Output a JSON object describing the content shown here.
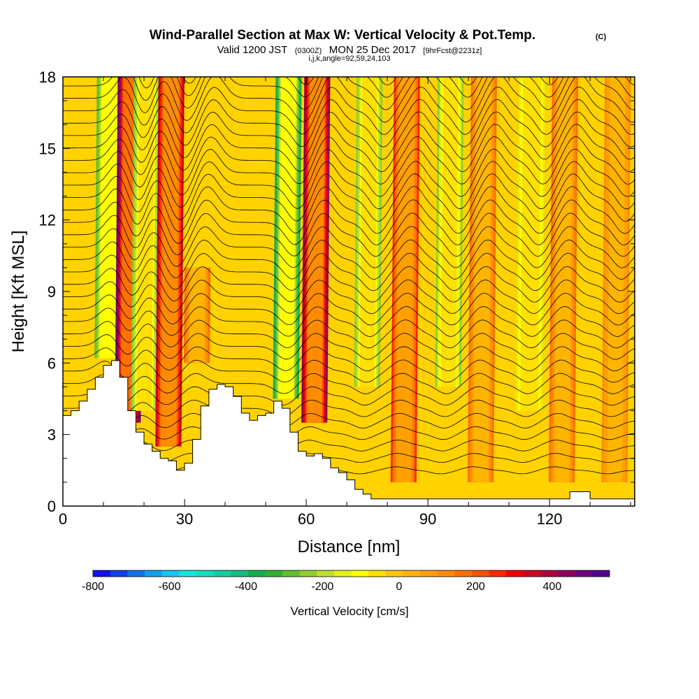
{
  "chart_data": {
    "type": "heatmap",
    "title": "Wind-Parallel Section at Max W: Vertical Velocity & Pot.Temp.",
    "title_mark": "(C)",
    "subtitle_main": "Valid 1200 JST",
    "subtitle_z": "(0300Z)",
    "subtitle_date": "MON 25 Dec 2017",
    "subtitle_fcst": "[9hrFcst@2231z]",
    "subtitle_indices": "i,j,k,angle=92,59,24,103",
    "xlabel": "Distance [nm]",
    "ylabel": "Height [Kft MSL]",
    "xlim": [
      0,
      141
    ],
    "ylim": [
      0,
      18
    ],
    "xticks": [
      0,
      30,
      60,
      90,
      120
    ],
    "yticks": [
      0,
      3,
      6,
      9,
      12,
      15,
      18
    ],
    "colorbar": {
      "label": "Vertical Velocity [cm/s]",
      "ticks": [
        -800,
        -600,
        -400,
        -200,
        0,
        200,
        400
      ],
      "range": [
        -800,
        550
      ],
      "colors": [
        "#1010f0",
        "#1040f0",
        "#1070f0",
        "#10a0f0",
        "#10c8f0",
        "#10e8e0",
        "#10e0c0",
        "#10d0a0",
        "#10c080",
        "#10b050",
        "#30b030",
        "#60c030",
        "#90d030",
        "#c0e030",
        "#e8f010",
        "#ffff00",
        "#ffe000",
        "#ffc800",
        "#ffb400",
        "#ffa000",
        "#ff8c00",
        "#ff7000",
        "#ff5000",
        "#ff2800",
        "#f00000",
        "#d00020",
        "#b00040",
        "#900060",
        "#700080",
        "#500090"
      ]
    },
    "legend": "bottom colorbar",
    "grid": false,
    "terrain_profile": {
      "x": [
        0,
        2,
        4,
        6,
        8,
        10,
        12,
        14,
        16,
        18,
        20,
        22,
        24,
        26,
        28,
        30,
        32,
        34,
        36,
        38,
        40,
        42,
        44,
        46,
        48,
        50,
        52,
        54,
        56,
        58,
        60,
        62,
        64,
        66,
        68,
        70,
        72,
        74,
        76,
        80,
        90,
        100,
        110,
        120,
        125,
        128,
        130,
        141
      ],
      "height": [
        3.8,
        4.0,
        4.4,
        4.9,
        5.4,
        5.9,
        6.1,
        5.4,
        4.0,
        3.1,
        2.6,
        2.3,
        2.0,
        1.9,
        1.5,
        1.8,
        2.8,
        4.2,
        4.9,
        5.1,
        5.0,
        4.6,
        3.9,
        3.6,
        3.8,
        3.9,
        4.4,
        4.1,
        3.1,
        2.3,
        2.1,
        2.2,
        2.0,
        1.6,
        1.4,
        1.1,
        0.7,
        0.5,
        0.3,
        0.3,
        0.3,
        0.3,
        0.3,
        0.3,
        0.6,
        0.6,
        0.3,
        0.3
      ]
    },
    "vertical_velocity_bands": [
      {
        "x": 11,
        "top": 18,
        "bottom": 6.2,
        "w": -300
      },
      {
        "x": 16,
        "top": 18,
        "bottom": 3.5,
        "w": 500
      },
      {
        "x": 20,
        "top": 18,
        "bottom": 4.0,
        "w": -250
      },
      {
        "x": 26,
        "top": 18,
        "bottom": 2.5,
        "w": 350
      },
      {
        "x": 33,
        "top": 10,
        "bottom": 6,
        "w": 150
      },
      {
        "x": 55,
        "top": 18,
        "bottom": 4.5,
        "w": -380
      },
      {
        "x": 62,
        "top": 18,
        "bottom": 3.5,
        "w": 420
      },
      {
        "x": 75,
        "top": 18,
        "bottom": 5,
        "w": -250
      },
      {
        "x": 84,
        "top": 18,
        "bottom": 1,
        "w": 250
      },
      {
        "x": 95,
        "top": 18,
        "bottom": 5,
        "w": -220
      },
      {
        "x": 103,
        "top": 18,
        "bottom": 1,
        "w": 180
      },
      {
        "x": 115,
        "top": 18,
        "bottom": 4,
        "w": -150
      },
      {
        "x": 123,
        "top": 18,
        "bottom": 1,
        "w": 170
      },
      {
        "x": 136,
        "top": 18,
        "bottom": 1,
        "w": 120
      }
    ]
  }
}
